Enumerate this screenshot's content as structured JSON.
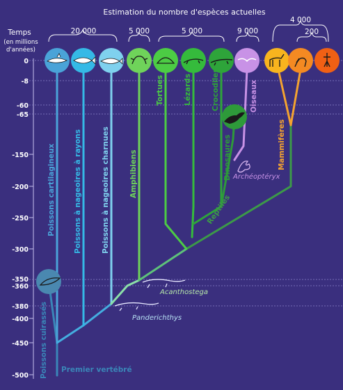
{
  "header": {
    "title": "Estimation du nombre d'espèces actuelles",
    "groups": [
      "20 000",
      "5 000",
      "5 000",
      "9 000",
      "4 000",
      "200"
    ]
  },
  "axis": {
    "title_line1": "Temps",
    "title_line2": "(en millions",
    "title_line3": "d'années)",
    "ticks": [
      "0",
      "-8",
      "-60",
      "-65",
      "-150",
      "-200",
      "-250",
      "-300",
      "-350",
      "-360",
      "-380",
      "-400",
      "-450",
      "-500"
    ]
  },
  "lineages": [
    {
      "label": "Poissons cartilagineux",
      "color": "#4aa3d8"
    },
    {
      "label": "Poissons à nageoires à rayons",
      "color": "#35b9e6"
    },
    {
      "label": "Poissons à nageoires charnues",
      "color": "#7fd1ee"
    },
    {
      "label": "Amphibiens",
      "color": "#6fd35a"
    },
    {
      "label": "Tortues",
      "color": "#4ccc44"
    },
    {
      "label": "Lézards",
      "color": "#35bb3c"
    },
    {
      "label": "Crocodiles",
      "color": "#2ea43a"
    },
    {
      "label": "Oiseaux",
      "color": "#c892e6"
    },
    {
      "label": "Mammifères",
      "color": "#f4a330"
    },
    {
      "label": "Dinosaures",
      "color": "#2e9a3a"
    },
    {
      "label": "Poissons cuirassés",
      "color": "#3a86b8"
    },
    {
      "label": "Reptiles",
      "color": "#3c9a48"
    }
  ],
  "fossils": {
    "archaeopteryx": "Archéoptéryx",
    "acanthostega": "Acanthostega",
    "panderichthys": "Panderichthys",
    "first_vertebrate": "Premier vertébré"
  }
}
